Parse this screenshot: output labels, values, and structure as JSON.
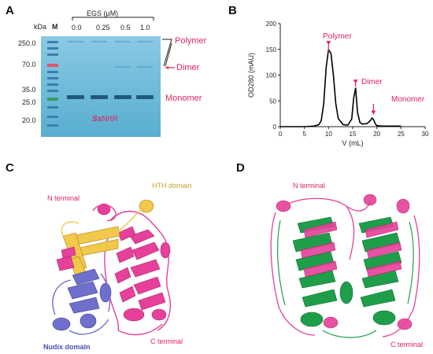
{
  "panels": {
    "a": {
      "letter": "A",
      "kda_label": "kDa",
      "marker_label": "M",
      "egs_label": "EGS (μM)",
      "lanes": [
        "0.0",
        "0.25",
        "0.5",
        "1.0"
      ],
      "mw_markers": [
        "250.0",
        "70.0",
        "35.0",
        "25.0",
        "20.0"
      ],
      "band_labels": {
        "polymer": "Polymer",
        "dimer": "Dimer",
        "monomer": "Monomer"
      },
      "protein_prefix": "Ss",
      "protein_suffix": "NrtR",
      "gel_color": "#5fb3d4",
      "accent_color": "#e0245e"
    },
    "b": {
      "letter": "B",
      "annotations": {
        "polymer": "Polymer",
        "dimer": "Dimer",
        "monomer": "Monomer"
      }
    },
    "c": {
      "letter": "C",
      "labels": {
        "n_terminal": "N terminal",
        "hth": "HTH domain",
        "nudix": "Nudix domain",
        "c_terminal": "C terminal"
      },
      "colors": {
        "n_terminal": "#e0245e",
        "hth": "#c9a227",
        "nudix": "#4b4fb0",
        "c_terminal": "#e0245e",
        "pink_ribbon": "#e6409a",
        "yellow_ribbon": "#f2c84b",
        "blue_ribbon": "#6f6fcc"
      }
    },
    "d": {
      "letter": "D",
      "labels": {
        "n_terminal": "N terminal",
        "c_terminal": "C terminal"
      },
      "colors": {
        "pink_ribbon": "#e6409a",
        "green_ribbon": "#1f9e4a"
      }
    }
  },
  "chart_data": {
    "type": "line",
    "xlabel": "V (mL)",
    "ylabel": "OD280 (mAU)",
    "xlim": [
      0,
      30
    ],
    "ylim": [
      0,
      200
    ],
    "xticks": [
      0,
      5,
      10,
      15,
      20,
      25,
      30
    ],
    "yticks": [
      0,
      50,
      100,
      150,
      200
    ],
    "grid": false,
    "series": [
      {
        "x": [
          0,
          5,
          7,
          8,
          8.5,
          9,
          9.5,
          10,
          10.5,
          11,
          11.5,
          12,
          13,
          14,
          14.8,
          15.2,
          15.6,
          16,
          16.5,
          17,
          18,
          18.7,
          19,
          19.3,
          19.7,
          20,
          21,
          23,
          25
        ],
        "y": [
          0,
          0,
          1,
          4,
          12,
          45,
          115,
          150,
          142,
          100,
          45,
          16,
          4,
          3,
          15,
          55,
          75,
          28,
          8,
          5,
          6,
          12,
          17,
          14,
          5,
          2,
          1,
          1,
          1
        ]
      }
    ]
  }
}
